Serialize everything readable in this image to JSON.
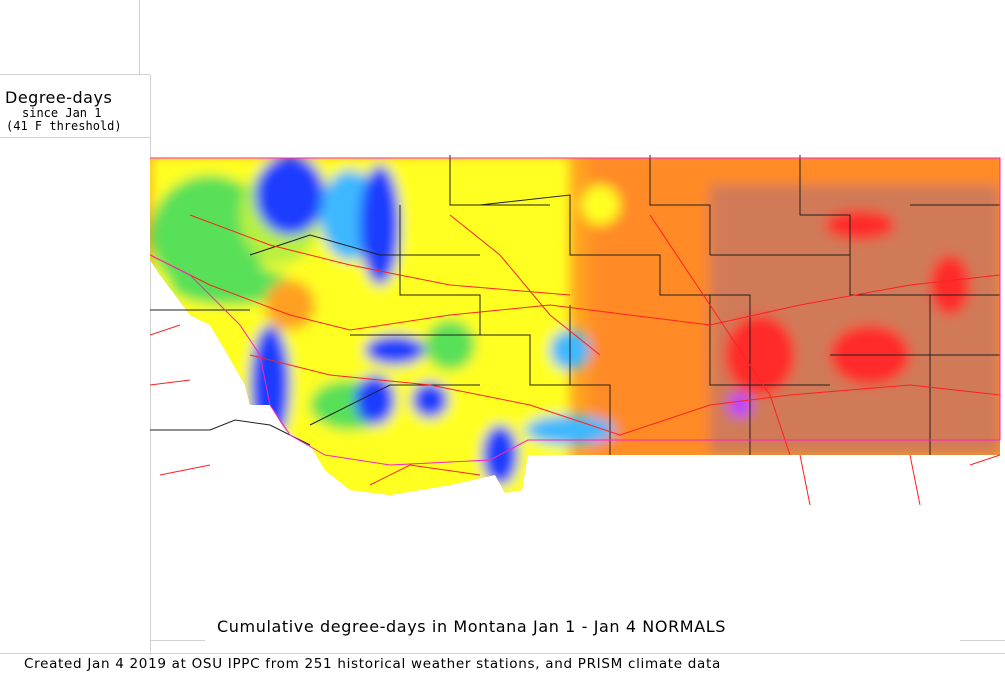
{
  "legend": {
    "title": "Degree-days",
    "subtitle": "since Jan 1",
    "threshold": "(41 F threshold)"
  },
  "map": {
    "title": "Cumulative degree-days in Montana  Jan 1 - Jan 4 NORMALS",
    "credit": "Created Jan 4 2019 at OSU IPPC from 251 historical weather stations, and PRISM climate data",
    "colors": {
      "lowest": "#1e3cff",
      "low": "#3cb8ff",
      "mid_low": "#58e058",
      "mid": "#ffff20",
      "mid_high": "#ffa020",
      "high": "#ff7a28",
      "higher": "#d07a58",
      "highest": "#ff2a2a",
      "roads": "#ff2020",
      "county_lines": "#202020",
      "state_line": "#ff20c0"
    }
  }
}
